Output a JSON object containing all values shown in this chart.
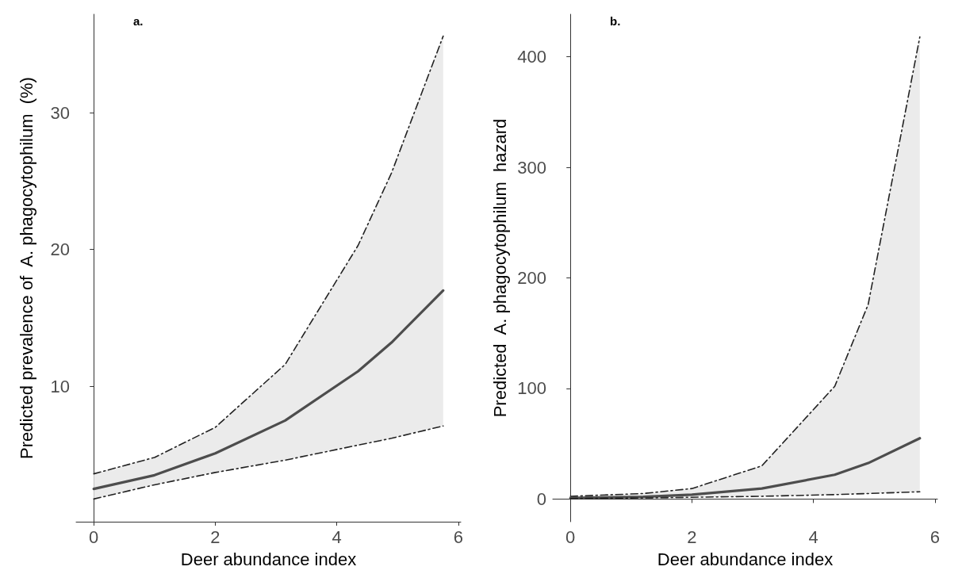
{
  "chart_data": [
    {
      "type": "line",
      "title": "a.",
      "xlabel": "Deer abundance index",
      "ylabel": "Predicted prevalence of  A. phagocytophilum  (%)",
      "x": [
        0,
        1,
        2,
        3.15,
        4.35,
        4.9,
        5.75
      ],
      "xlim": [
        -0.29,
        6.04
      ],
      "xticks": [
        0,
        2,
        4,
        6
      ],
      "ylim": [
        0.1,
        37.2
      ],
      "yticks": [
        10,
        20,
        30
      ],
      "grid": false,
      "line_style": "solid",
      "series": [
        {
          "color": "#4d4d4d",
          "values": [
            2.5,
            3.5,
            5.1,
            7.5,
            11.1,
            13.2,
            17.0
          ],
          "lower": [
            1.76,
            2.8,
            3.7,
            4.6,
            5.7,
            6.2,
            7.1
          ],
          "upper": [
            3.6,
            4.8,
            7.0,
            11.6,
            20.3,
            25.6,
            35.6
          ]
        },
        {
          "color": "#222222",
          "line_style": "dashed",
          "values": [
            3.6,
            4.8,
            7.0,
            11.6,
            20.3,
            25.6,
            35.6
          ]
        },
        {
          "color": "#222222",
          "line_style": "dashed",
          "values": [
            1.76,
            2.8,
            3.7,
            4.6,
            5.7,
            6.2,
            7.1
          ]
        }
      ]
    },
    {
      "type": "line",
      "title": "b.",
      "xlabel": "Deer abundance index",
      "ylabel": "Predicted  A. phagocytophilum  hazard",
      "x": [
        0,
        1.2,
        2,
        3.15,
        4.35,
        4.9,
        5.75
      ],
      "xlim": [
        -0.29,
        6.04
      ],
      "xticks": [
        0,
        2,
        4,
        6
      ],
      "ylim": [
        -20.5,
        438.5
      ],
      "yticks": [
        0,
        100,
        200,
        300,
        400
      ],
      "grid": false,
      "line_style": "solid",
      "series": [
        {
          "color": "#4d4d4d",
          "values": [
            1,
            2,
            4,
            9.5,
            22,
            32.5,
            55
          ],
          "lower": [
            0.5,
            1,
            1.6,
            2.5,
            4,
            5,
            6.6
          ],
          "upper": [
            2.5,
            5,
            9.5,
            30,
            102,
            176,
            418
          ]
        },
        {
          "color": "#222222",
          "line_style": "dashed",
          "values": [
            2.5,
            5,
            9.5,
            30,
            102,
            176,
            418
          ]
        },
        {
          "color": "#222222",
          "line_style": "dashed",
          "values": [
            0.5,
            1,
            1.6,
            2.5,
            4,
            5,
            6.6
          ]
        }
      ]
    }
  ]
}
